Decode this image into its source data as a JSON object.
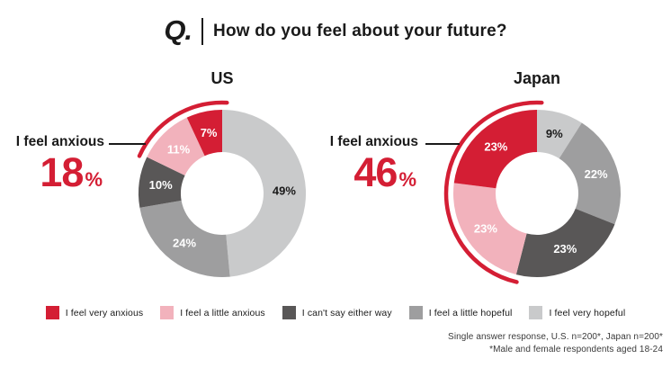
{
  "header": {
    "q_label": "Q.",
    "question": "How do you feel about your future?"
  },
  "legend": {
    "items": [
      {
        "label": "I feel very anxious",
        "color": "#d41e34",
        "value_label_color": "#ffffff"
      },
      {
        "label": "I feel a little anxious",
        "color": "#f2b2bc",
        "value_label_color": "#ffffff"
      },
      {
        "label": "I can't say either way",
        "color": "#595757",
        "value_label_color": "#ffffff"
      },
      {
        "label": "I feel a little hopeful",
        "color": "#9e9e9f",
        "value_label_color": "#ffffff"
      },
      {
        "label": "I feel very hopeful",
        "color": "#c9cacb",
        "value_label_color": "#1a1a1a"
      }
    ]
  },
  "chart_data": [
    {
      "type": "pie",
      "variant": "donut",
      "title": "US",
      "categories": [
        "I feel very anxious",
        "I feel a little anxious",
        "I can't say either way",
        "I feel a little hopeful",
        "I feel very hopeful"
      ],
      "values": [
        7,
        11,
        10,
        24,
        49
      ],
      "unit": "%",
      "layout": "first category starts at 12 o'clock going counterclockwise",
      "highlight": {
        "label": "I feel anxious",
        "value": "18",
        "unit": "%",
        "covers_indices": [
          0,
          1
        ],
        "color": "#d41e34"
      }
    },
    {
      "type": "pie",
      "variant": "donut",
      "title": "Japan",
      "categories": [
        "I feel very anxious",
        "I feel a little anxious",
        "I can't say either way",
        "I feel a little hopeful",
        "I feel very hopeful"
      ],
      "values": [
        23,
        23,
        23,
        22,
        9
      ],
      "unit": "%",
      "layout": "first category starts at 12 o'clock going counterclockwise",
      "highlight": {
        "label": "I feel anxious",
        "value": "46",
        "unit": "%",
        "covers_indices": [
          0,
          1
        ],
        "color": "#d41e34"
      }
    }
  ],
  "footnote": {
    "line1": "Single answer response, U.S. n=200*, Japan n=200*",
    "line2": "*Male and female respondents aged 18-24"
  },
  "colors": {
    "accent_red": "#d41e34",
    "text_black": "#1a1a1a",
    "background": "#ffffff"
  }
}
